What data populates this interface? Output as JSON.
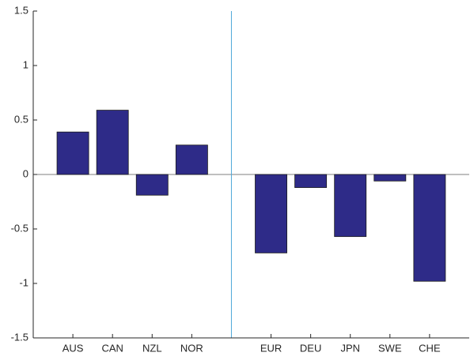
{
  "chart_data": {
    "type": "bar",
    "categories": [
      "AUS",
      "CAN",
      "NZL",
      "NOR",
      null,
      "EUR",
      "DEU",
      "JPN",
      "SWE",
      "CHE"
    ],
    "values": [
      0.39,
      0.59,
      -0.19,
      0.27,
      null,
      -0.72,
      -0.12,
      -0.57,
      -0.06,
      -0.98
    ],
    "color": "#2e2b88",
    "ylim": [
      -1.5,
      1.5
    ],
    "yticks": [
      -1.5,
      -1,
      -0.5,
      0,
      0.5,
      1,
      1.5
    ]
  }
}
